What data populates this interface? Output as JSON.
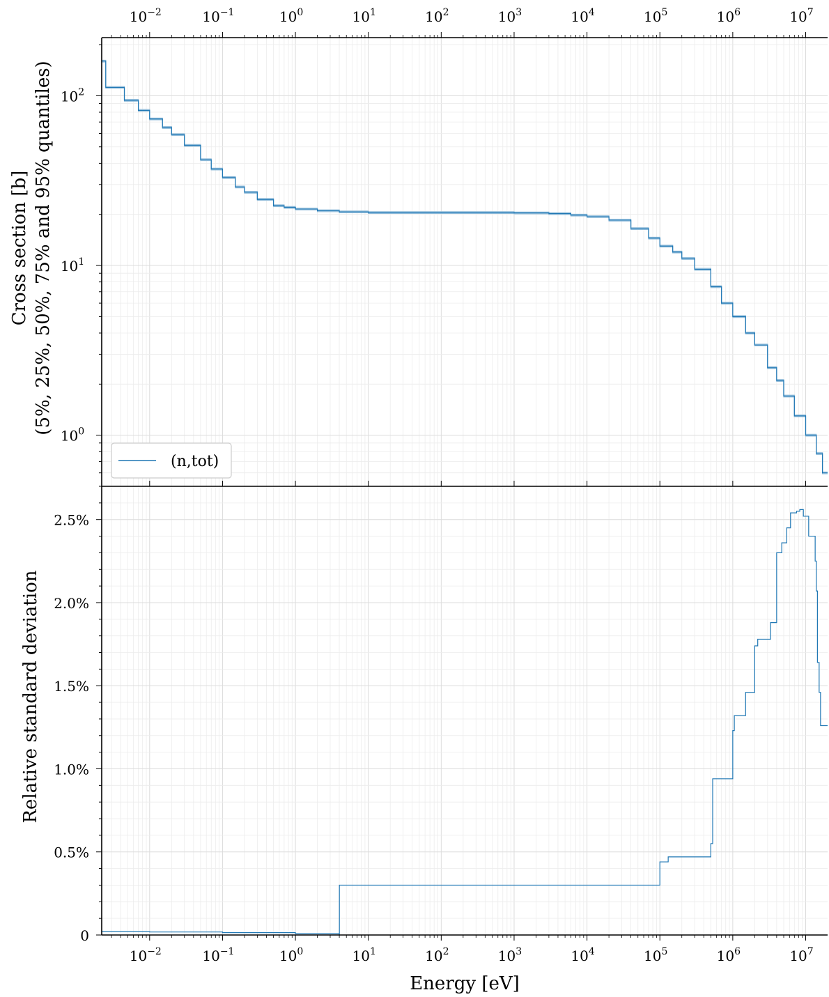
{
  "chart_data": [
    {
      "type": "line",
      "id": "cross-section",
      "xscale": "log",
      "yscale": "log",
      "xlim": [
        0.0022,
        20000000
      ],
      "ylim": [
        0.5,
        220
      ],
      "ylabel": "Cross section [b]",
      "ylabel2": "(5%, 25%, 50%, 75% and 95% quantiles)",
      "xlabel": "",
      "x_ticks": [
        {
          "value": 0.01,
          "base": "10",
          "exp": "−2"
        },
        {
          "value": 0.1,
          "base": "10",
          "exp": "−1"
        },
        {
          "value": 1,
          "base": "10",
          "exp": "0"
        },
        {
          "value": 10,
          "base": "10",
          "exp": "1"
        },
        {
          "value": 100,
          "base": "10",
          "exp": "2"
        },
        {
          "value": 1000,
          "base": "10",
          "exp": "3"
        },
        {
          "value": 10000,
          "base": "10",
          "exp": "4"
        },
        {
          "value": 100000,
          "base": "10",
          "exp": "5"
        },
        {
          "value": 1000000,
          "base": "10",
          "exp": "6"
        },
        {
          "value": 10000000,
          "base": "10",
          "exp": "7"
        }
      ],
      "y_ticks": [
        {
          "value": 1,
          "base": "10",
          "exp": "0"
        },
        {
          "value": 10,
          "base": "10",
          "exp": "1"
        },
        {
          "value": 100,
          "base": "10",
          "exp": "2"
        }
      ],
      "grid": true,
      "legend": {
        "placement": "lower-left",
        "entries": [
          "(n,tot)"
        ]
      },
      "series": [
        {
          "name": "(n,tot)",
          "color": "#1f77b4",
          "step": true,
          "points": [
            [
              0.0022,
              160
            ],
            [
              0.0025,
              112
            ],
            [
              0.0045,
              94
            ],
            [
              0.007,
              82
            ],
            [
              0.01,
              73
            ],
            [
              0.015,
              65
            ],
            [
              0.02,
              59
            ],
            [
              0.03,
              51
            ],
            [
              0.05,
              42
            ],
            [
              0.07,
              37
            ],
            [
              0.1,
              33
            ],
            [
              0.15,
              29
            ],
            [
              0.2,
              27
            ],
            [
              0.3,
              24.5
            ],
            [
              0.5,
              22.5
            ],
            [
              0.7,
              22
            ],
            [
              1,
              21.5
            ],
            [
              2,
              21
            ],
            [
              4,
              20.7
            ],
            [
              10,
              20.5
            ],
            [
              100,
              20.5
            ],
            [
              1000,
              20.4
            ],
            [
              3000,
              20.2
            ],
            [
              6000,
              19.8
            ],
            [
              10000,
              19.4
            ],
            [
              20000,
              18.5
            ],
            [
              40000,
              16.5
            ],
            [
              70000,
              14.5
            ],
            [
              100000,
              13
            ],
            [
              150000,
              12
            ],
            [
              200000,
              11
            ],
            [
              300000,
              9.5
            ],
            [
              500000,
              7.5
            ],
            [
              700000,
              6
            ],
            [
              1000000,
              5
            ],
            [
              1500000,
              4
            ],
            [
              2000000,
              3.4
            ],
            [
              3000000,
              2.5
            ],
            [
              4000000,
              2.1
            ],
            [
              5000000,
              1.7
            ],
            [
              7000000,
              1.3
            ],
            [
              10000000,
              1
            ],
            [
              14000000,
              0.78
            ],
            [
              17000000,
              0.6
            ],
            [
              20000000,
              0.6
            ]
          ]
        }
      ]
    },
    {
      "type": "line",
      "id": "relative-std-dev",
      "xscale": "log",
      "yscale": "linear",
      "xlim": [
        0.0022,
        20000000
      ],
      "ylim": [
        0,
        0.027
      ],
      "ylabel": "Relative standard deviation",
      "xlabel": "Energy [eV]",
      "y_ticks": [
        {
          "value": 0,
          "label": "0"
        },
        {
          "value": 0.005,
          "label": "0.5%"
        },
        {
          "value": 0.01,
          "label": "1.0%"
        },
        {
          "value": 0.015,
          "label": "1.5%"
        },
        {
          "value": 0.02,
          "label": "2.0%"
        },
        {
          "value": 0.025,
          "label": "2.5%"
        }
      ],
      "grid": true,
      "series": [
        {
          "color": "#1f77b4",
          "step": true,
          "points": [
            [
              0.0022,
              0.0002
            ],
            [
              0.01,
              0.00018
            ],
            [
              0.1,
              0.00014
            ],
            [
              1,
              8e-05
            ],
            [
              4,
              2e-05
            ],
            [
              4.01,
              0.003
            ],
            [
              100000,
              0.003
            ],
            [
              100001,
              0.0044
            ],
            [
              130000,
              0.0047
            ],
            [
              500000,
              0.0047
            ],
            [
              500001,
              0.0055
            ],
            [
              530000,
              0.0094
            ],
            [
              1000000,
              0.0094
            ],
            [
              1000001,
              0.0123
            ],
            [
              1050000,
              0.0132
            ],
            [
              1500000,
              0.0132
            ],
            [
              1500001,
              0.0146
            ],
            [
              1600000,
              0.0146
            ],
            [
              2000000,
              0.0146
            ],
            [
              2000001,
              0.0174
            ],
            [
              2200000,
              0.0178
            ],
            [
              3000000,
              0.0178
            ],
            [
              3300000,
              0.0188
            ],
            [
              4000000,
              0.0188
            ],
            [
              4000001,
              0.023
            ],
            [
              4700000,
              0.0236
            ],
            [
              5500000,
              0.0245
            ],
            [
              6200000,
              0.0254
            ],
            [
              7500000,
              0.0255
            ],
            [
              8300000,
              0.0256
            ],
            [
              9300000,
              0.0252
            ],
            [
              10000000,
              0.0252
            ],
            [
              11000000,
              0.024
            ],
            [
              13500000,
              0.0225
            ],
            [
              14000000,
              0.0207
            ],
            [
              14500000,
              0.0164
            ],
            [
              15300000,
              0.0146
            ],
            [
              16000000,
              0.0126
            ],
            [
              20000000,
              0.0126
            ]
          ]
        }
      ]
    }
  ]
}
